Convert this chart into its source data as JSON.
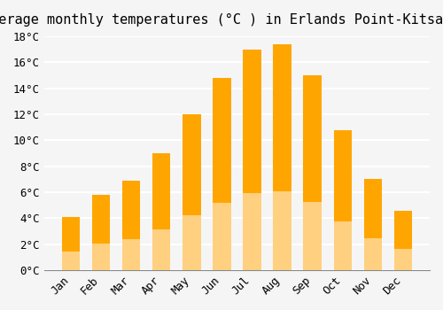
{
  "title": "Average monthly temperatures (°C ) in Erlands Point-Kitsap Lake",
  "months": [
    "Jan",
    "Feb",
    "Mar",
    "Apr",
    "May",
    "Jun",
    "Jul",
    "Aug",
    "Sep",
    "Oct",
    "Nov",
    "Dec"
  ],
  "values": [
    4.1,
    5.8,
    6.9,
    9.0,
    12.0,
    14.8,
    17.0,
    17.4,
    15.0,
    10.8,
    7.0,
    4.6
  ],
  "bar_color_top": "#FFA500",
  "bar_color_bottom": "#FFD080",
  "ylim": [
    0,
    18
  ],
  "yticks": [
    0,
    2,
    4,
    6,
    8,
    10,
    12,
    14,
    16,
    18
  ],
  "background_color": "#F5F5F5",
  "grid_color": "#FFFFFF",
  "title_fontsize": 11,
  "tick_fontsize": 9,
  "font_family": "monospace"
}
